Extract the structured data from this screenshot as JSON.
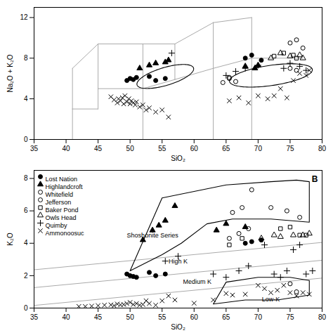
{
  "chart_data": [
    {
      "type": "scatter",
      "xlabel": "SiO₂",
      "ylabel": "Na₂O + K₂O",
      "xlim": [
        35,
        80
      ],
      "ylim": [
        0,
        13
      ],
      "xticks": [
        35,
        40,
        45,
        50,
        55,
        60,
        65,
        70,
        75,
        80
      ],
      "yticks": [
        0,
        4,
        8,
        12
      ],
      "legend": false,
      "series": [
        {
          "name": "Lost Nation",
          "color": "#000000",
          "marker": "circle",
          "x": [
            49.5,
            50.0,
            50.5,
            51.0,
            53.0,
            54.0,
            55.5,
            68.0,
            69.0,
            70.5
          ],
          "y": [
            5.8,
            6.0,
            5.9,
            6.1,
            6.2,
            5.8,
            6.0,
            8.0,
            8.3,
            7.8
          ]
        },
        {
          "name": "Highlandcroft",
          "color": "#000000",
          "marker": "triangle",
          "x": [
            51.5,
            53.0,
            54.0,
            55.5,
            56.0,
            68.0,
            69.5,
            70.0
          ],
          "y": [
            7.0,
            7.3,
            7.5,
            7.6,
            7.8,
            7.2,
            7.0,
            7.3
          ]
        },
        {
          "name": "Whitefield",
          "color": "#000000",
          "marker": "open circle",
          "x": [
            65.5,
            66.5,
            75.0,
            76.0
          ],
          "y": [
            6.0,
            5.7,
            7.0,
            6.8
          ]
        },
        {
          "name": "Jefferson",
          "color": "#000000",
          "marker": "open circle",
          "x": [
            64.5,
            65.5,
            75.0,
            76.0,
            77.0
          ],
          "y": [
            5.6,
            6.1,
            9.5,
            9.8,
            9.0
          ]
        },
        {
          "name": "Baker Pond",
          "color": "#000000",
          "marker": "open square",
          "x": [
            72.5,
            74.0,
            75.5,
            76.0
          ],
          "y": [
            8.2,
            8.5,
            8.3,
            8.0
          ]
        },
        {
          "name": "Owls Head",
          "color": "#000000",
          "marker": "open triangle",
          "x": [
            72.0,
            73.5,
            75.0,
            76.5,
            77.0
          ],
          "y": [
            8.0,
            8.5,
            8.2,
            8.3,
            8.0
          ]
        },
        {
          "name": "Quimby",
          "color": "#000000",
          "marker": "plus",
          "x": [
            56.5,
            65.0,
            66.5,
            68.0,
            70.0,
            74.0,
            75.0,
            76.5,
            77.5
          ],
          "y": [
            8.5,
            6.3,
            6.7,
            7.0,
            7.3,
            7.0,
            7.5,
            7.2,
            6.8
          ]
        },
        {
          "name": "Ammonoosuc",
          "color": "#000000",
          "marker": "cross",
          "x": [
            47.0,
            47.5,
            48.0,
            48.2,
            48.5,
            48.8,
            49.0,
            49.2,
            49.5,
            49.8,
            50.0,
            50.2,
            50.5,
            50.8,
            51.0,
            51.5,
            52.0,
            52.5,
            53.0,
            54.0,
            55.0,
            56.0,
            65.5,
            67.0,
            68.5,
            70.0,
            71.5,
            72.5,
            73.5,
            74.5,
            75.5,
            76.5,
            77.5,
            78.0
          ],
          "y": [
            4.2,
            3.9,
            3.6,
            4.0,
            3.8,
            4.1,
            3.5,
            4.3,
            3.7,
            4.0,
            3.5,
            3.8,
            3.6,
            3.4,
            3.7,
            3.2,
            3.4,
            2.9,
            3.1,
            2.7,
            2.9,
            2.2,
            3.8,
            4.1,
            3.6,
            4.3,
            4.0,
            4.3,
            5.0,
            4.1,
            5.8,
            6.5,
            6.3,
            6.8
          ]
        }
      ],
      "lines": [
        {
          "color": "#aaaaaa",
          "x": [
            41,
            41
          ],
          "y": [
            0,
            3
          ]
        },
        {
          "color": "#aaaaaa",
          "x": [
            41,
            45
          ],
          "y": [
            3,
            3
          ]
        },
        {
          "color": "#aaaaaa",
          "x": [
            45,
            45
          ],
          "y": [
            3,
            5
          ]
        },
        {
          "color": "#aaaaaa",
          "x": [
            45,
            52
          ],
          "y": [
            5,
            5
          ]
        },
        {
          "color": "#aaaaaa",
          "x": [
            52,
            52
          ],
          "y": [
            0,
            5
          ]
        },
        {
          "color": "#aaaaaa",
          "x": [
            52,
            57
          ],
          "y": [
            5,
            5.9
          ]
        },
        {
          "color": "#aaaaaa",
          "x": [
            57,
            63
          ],
          "y": [
            5.9,
            7.0
          ]
        },
        {
          "color": "#aaaaaa",
          "x": [
            63,
            63
          ],
          "y": [
            0,
            7
          ]
        },
        {
          "color": "#aaaaaa",
          "x": [
            63,
            69
          ],
          "y": [
            7,
            8
          ]
        },
        {
          "color": "#aaaaaa",
          "x": [
            69,
            69
          ],
          "y": [
            0,
            8
          ]
        },
        {
          "color": "#aaaaaa",
          "x": [
            69,
            77
          ],
          "y": [
            8,
            8
          ]
        },
        {
          "color": "#aaaaaa",
          "x": [
            45,
            45
          ],
          "y": [
            5,
            9.4
          ]
        },
        {
          "color": "#aaaaaa",
          "x": [
            45,
            52
          ],
          "y": [
            9.4,
            9.4
          ]
        },
        {
          "color": "#aaaaaa",
          "x": [
            52,
            52
          ],
          "y": [
            5,
            9.4
          ]
        },
        {
          "color": "#aaaaaa",
          "x": [
            52,
            57
          ],
          "y": [
            9.4,
            9.4
          ]
        },
        {
          "color": "#aaaaaa",
          "x": [
            57,
            57
          ],
          "y": [
            5.9,
            9.4
          ]
        },
        {
          "color": "#aaaaaa",
          "x": [
            57,
            63
          ],
          "y": [
            9.4,
            11.5
          ]
        },
        {
          "color": "#aaaaaa",
          "x": [
            63,
            63
          ],
          "y": [
            7,
            11.5
          ]
        },
        {
          "color": "#aaaaaa",
          "x": [
            63,
            69
          ],
          "y": [
            11.5,
            12
          ]
        },
        {
          "color": "#aaaaaa",
          "x": [
            69,
            69
          ],
          "y": [
            8,
            12
          ]
        },
        {
          "color": "#aaaaaa",
          "x": [
            41,
            41
          ],
          "y": [
            3,
            7
          ]
        },
        {
          "color": "#aaaaaa",
          "x": [
            41,
            45
          ],
          "y": [
            7,
            9.4
          ]
        }
      ],
      "ellipses": [
        {
          "color": "#000000",
          "cx": 55.5,
          "cy": 6.2,
          "width": 9,
          "height": 1.8,
          "angle": 10
        },
        {
          "color": "#000000",
          "cx": 72.0,
          "cy": 6.3,
          "width": 13,
          "height": 2.0,
          "angle": 5
        }
      ]
    },
    {
      "type": "scatter",
      "xlabel": "SiO₂",
      "ylabel": "K₂O",
      "xlim": [
        35,
        80
      ],
      "ylim": [
        0,
        8.5
      ],
      "xticks": [
        35,
        40,
        45,
        50,
        55,
        60,
        65,
        70,
        75,
        80
      ],
      "yticks": [
        0,
        2,
        4,
        6,
        8
      ],
      "legend": "upper left",
      "panel_label": "B",
      "series": [
        {
          "name": "Lost Nation",
          "color": "#000000",
          "marker": "circle",
          "x": [
            49.5,
            50.0,
            50.5,
            51.0,
            53.0,
            54.0,
            55.5,
            68.0,
            69.0,
            70.5
          ],
          "y": [
            2.1,
            2.0,
            1.95,
            1.9,
            2.2,
            2.0,
            2.1,
            4.0,
            4.1,
            4.2
          ]
        },
        {
          "name": "Highlandcroft",
          "color": "#000000",
          "marker": "triangle",
          "x": [
            52.0,
            53.5,
            54.5,
            55.5,
            57.0,
            63.5,
            65.0,
            68.0
          ],
          "y": [
            4.2,
            4.8,
            5.1,
            5.4,
            6.3,
            4.8,
            5.2,
            5.0
          ]
        },
        {
          "name": "Whitefield",
          "color": "#000000",
          "marker": "open circle",
          "x": [
            65.5,
            67.0,
            68.5,
            75.0,
            76.0
          ],
          "y": [
            4.3,
            4.6,
            4.9,
            1.5,
            1.0
          ]
        },
        {
          "name": "Jefferson",
          "color": "#000000",
          "marker": "open circle",
          "x": [
            66.0,
            67.5,
            69.0,
            72.0,
            74.5,
            76.5
          ],
          "y": [
            5.9,
            6.2,
            7.3,
            6.2,
            6.0,
            5.6
          ]
        },
        {
          "name": "Baker Pond",
          "color": "#000000",
          "marker": "open square",
          "x": [
            65.5,
            67.5,
            73.5,
            75.0,
            76.5,
            77.5
          ],
          "y": [
            3.9,
            4.3,
            4.9,
            5.0,
            4.5,
            4.5
          ]
        },
        {
          "name": "Owls Head",
          "color": "#000000",
          "marker": "open triangle",
          "x": [
            70.5,
            72.5,
            73.5,
            75.5,
            77.0,
            78.0
          ],
          "y": [
            4.3,
            4.5,
            4.4,
            4.5,
            4.5,
            4.6
          ]
        },
        {
          "name": "Quimby",
          "color": "#000000",
          "marker": "plus",
          "x": [
            55.5,
            57.5,
            63.0,
            65.0,
            67.0,
            68.5,
            71.0,
            72.5,
            73.5,
            74.5,
            75.5,
            76.5,
            77.5,
            78.5
          ],
          "y": [
            2.9,
            3.2,
            2.1,
            1.9,
            2.3,
            2.6,
            3.9,
            2.1,
            1.9,
            2.3,
            3.6,
            3.9,
            2.1,
            2.3
          ]
        },
        {
          "name": "Ammonoosuc",
          "color": "#000000",
          "marker": "cross",
          "x": [
            42,
            43,
            44,
            45,
            46,
            47,
            47.5,
            48,
            48.5,
            49,
            49.5,
            50,
            50.5,
            51,
            51.5,
            52,
            52.5,
            53,
            54,
            55,
            56,
            57,
            60,
            63,
            65,
            66,
            68,
            70,
            71,
            72,
            73,
            74,
            75,
            76,
            77,
            78
          ],
          "y": [
            0.1,
            0.1,
            0.12,
            0.15,
            0.18,
            0.2,
            0.15,
            0.25,
            0.2,
            0.22,
            0.28,
            0.35,
            0.22,
            0.28,
            0.18,
            0.22,
            0.45,
            0.28,
            0.18,
            0.45,
            0.75,
            0.5,
            0.3,
            0.5,
            0.9,
            0.8,
            0.85,
            1.4,
            1.2,
            0.95,
            1.1,
            1.4,
            0.95,
            0.75,
            0.95,
            0.85
          ]
        }
      ],
      "lines": [
        {
          "color": "#aaaaaa",
          "x": [
            35,
            80
          ],
          "y": [
            0.1625,
            1.85
          ]
        },
        {
          "color": "#aaaaaa",
          "x": [
            35,
            80
          ],
          "y": [
            1.2625,
            2.95
          ]
        },
        {
          "color": "#aaaaaa",
          "x": [
            35,
            80
          ],
          "y": [
            2.3625,
            4.05
          ]
        }
      ],
      "polygons": [
        {
          "color": "#000000",
          "x": [
            50,
            52,
            55,
            58,
            62,
            66,
            72,
            78,
            78,
            76,
            72,
            65,
            60,
            55,
            50
          ],
          "y": [
            2.3,
            2.7,
            3.3,
            4.0,
            5.2,
            5.5,
            5.5,
            5.3,
            7.8,
            7.9,
            7.8,
            7.6,
            7.2,
            6.8,
            2.3
          ]
        },
        {
          "color": "#000000",
          "x": [
            63,
            68,
            73,
            78,
            78,
            75,
            70,
            65,
            63
          ],
          "y": [
            0.25,
            0.5,
            0.5,
            0.8,
            1.7,
            1.9,
            1.9,
            1.6,
            0.25
          ]
        }
      ],
      "annotations": [
        {
          "text": "Shoshonite Series",
          "x": 49.5,
          "y": 4.5,
          "anchor": "start",
          "color": "#000000"
        },
        {
          "text": "High K",
          "x": 57.5,
          "y": 2.9,
          "anchor": "middle",
          "color": "#000000"
        },
        {
          "text": "Medium K",
          "x": 60.5,
          "y": 1.6,
          "anchor": "middle",
          "color": "#000000"
        },
        {
          "text": "Low-K",
          "x": 72.0,
          "y": 0.55,
          "anchor": "middle",
          "color": "#000000"
        }
      ]
    }
  ]
}
